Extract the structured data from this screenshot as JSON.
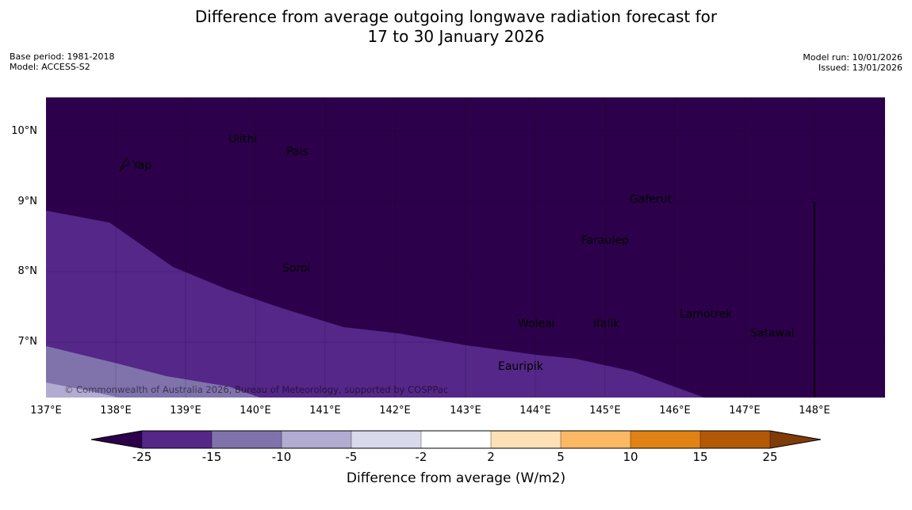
{
  "title": {
    "line1": "Difference from average outgoing longwave radiation forecast for",
    "line2": "17 to 30 January 2026"
  },
  "meta": {
    "base_period": "Base period: 1981-2018",
    "model": "Model: ACCESS-S2",
    "model_run": "Model run: 10/01/2026",
    "issued": "Issued: 13/01/2026"
  },
  "map": {
    "lat_labels": [
      "10°N",
      "9°N",
      "8°N",
      "7°N"
    ],
    "lon_labels": [
      "137°E",
      "138°E",
      "139°E",
      "140°E",
      "141°E",
      "142°E",
      "143°E",
      "144°E",
      "145°E",
      "146°E",
      "147°E",
      "148°E"
    ],
    "places": [
      "Ulithi",
      "Pais",
      "Yap",
      "Gaferut",
      "Faraulep",
      "Sorol",
      "Woleai",
      "Ifalik",
      "Lamotrek",
      "Satawal",
      "Eauripik"
    ],
    "copyright": "© Commonwealth of Australia 2026, Bureau of Meteorology, supported by COSPPac"
  },
  "colorbar": {
    "title": "Difference from average (W/m2)",
    "ticks": [
      "-25",
      "-15",
      "-10",
      "-5",
      "-2",
      "2",
      "5",
      "10",
      "15",
      "25"
    ],
    "colors": {
      "below": "#2d004b",
      "b1": "#542788",
      "b2": "#8073ac",
      "b3": "#b2abd2",
      "b4": "#d8daeb",
      "b5": "#ffffff",
      "b6": "#fee0b6",
      "b7": "#fdb863",
      "b8": "#e08214",
      "b9": "#b35806",
      "above": "#7f3b08"
    }
  }
}
